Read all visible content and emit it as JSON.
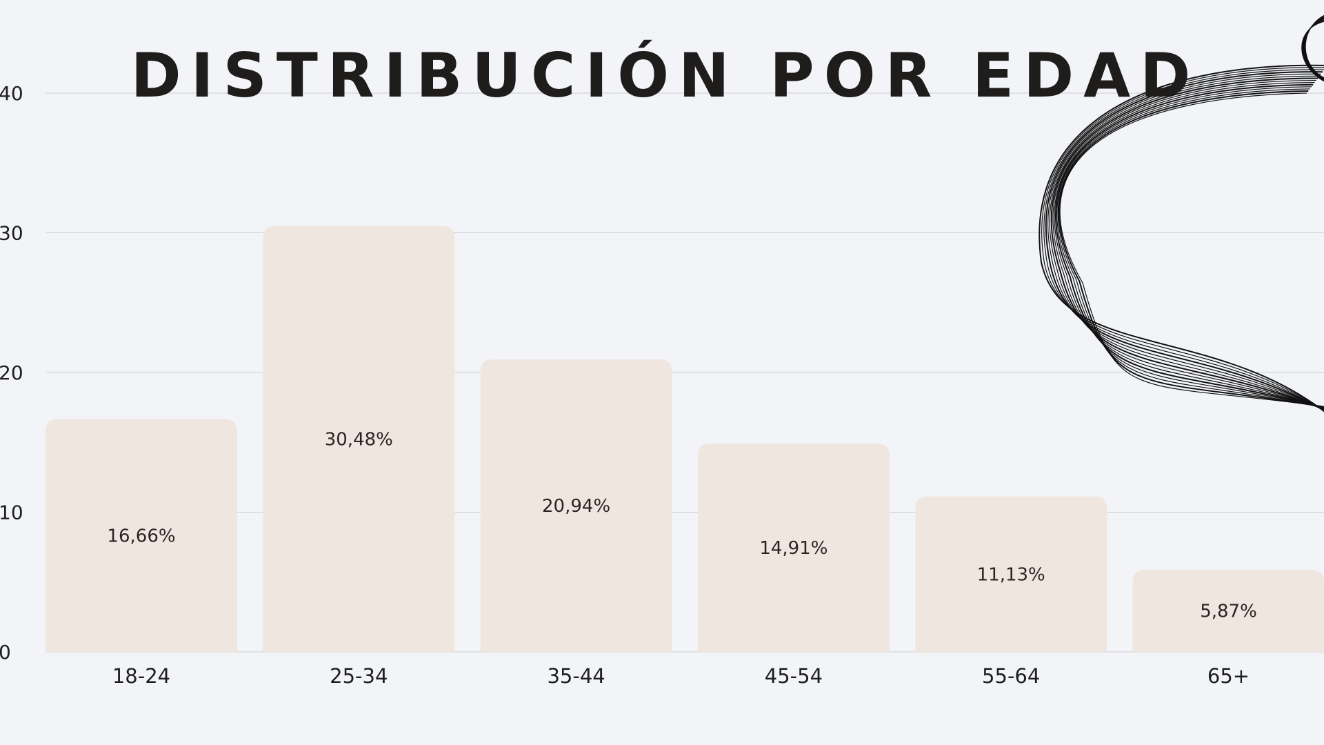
{
  "chart_data": {
    "type": "bar",
    "title": "DISTRIBUCIÓN POR EDAD",
    "categories": [
      "18-24",
      "25-34",
      "35-44",
      "45-54",
      "55-64",
      "65+"
    ],
    "values": [
      16.66,
      30.48,
      20.94,
      14.91,
      11.13,
      5.87
    ],
    "value_labels": [
      "16,66%",
      "30,48%",
      "20,94%",
      "14,91%",
      "11,13%",
      "5,87%"
    ],
    "y_ticks": [
      "0",
      "10",
      "20",
      "30",
      "40"
    ],
    "ylim": [
      0,
      40
    ],
    "grid": true,
    "legend": "none",
    "colors": {
      "background": "#f2f4f7",
      "bar": "#efe6e0",
      "grid": "#c9cbcf",
      "text": "#1e1e1e",
      "decoration": "#111111"
    }
  }
}
